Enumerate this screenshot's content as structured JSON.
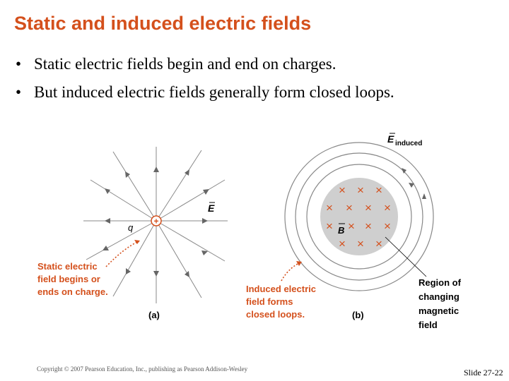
{
  "slide": {
    "title": "Static and induced electric fields",
    "bullets": [
      "Static electric fields begin and end on charges.",
      "But induced electric fields generally form closed loops."
    ],
    "bullet_symbol": "•",
    "copyright": "Copyright © 2007 Pearson Education, Inc., publishing as Pearson Addison-Wesley",
    "slide_number": "Slide 27-22"
  },
  "figure": {
    "panel_a": {
      "charge_label": "q",
      "charge_sign": "+",
      "field_label": "E",
      "caption_lines": [
        "Static electric",
        "field begins or",
        "ends on charge."
      ],
      "panel_label": "(a)"
    },
    "panel_b": {
      "field_label": "E",
      "field_subscript": "induced",
      "b_label": "B",
      "cross_symbol": "×",
      "caption_lines": [
        "Induced electric",
        "field forms",
        "closed loops."
      ],
      "region_lines": [
        "Region of",
        "changing",
        "magnetic",
        "field"
      ],
      "panel_label": "(b)"
    },
    "colors": {
      "title": "#d4501c",
      "caption": "#d4501c",
      "charge": "#d4501c",
      "cross": "#d4501c",
      "field_lines": "#888888",
      "magnetic_region": "#cfcfcf"
    }
  }
}
